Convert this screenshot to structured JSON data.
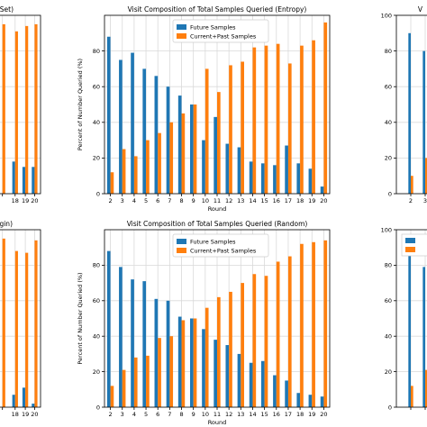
{
  "colors": {
    "future": "#1f77b4",
    "current": "#ff7f0e",
    "grid": "#d9d9d9",
    "frame": "#000000"
  },
  "chart_data": [
    {
      "id": "top-left",
      "type": "bar",
      "title": "eSet)",
      "xlabel": "",
      "ylabel": "",
      "categories": [
        "",
        "18",
        "19",
        "20"
      ],
      "ylim": [
        0,
        100
      ],
      "grid": true,
      "series": [
        {
          "name": "",
          "values": [
            null,
            18,
            15,
            15
          ]
        },
        {
          "name": "",
          "values": [
            95,
            91,
            94,
            95
          ]
        }
      ]
    },
    {
      "id": "top-middle",
      "type": "bar",
      "title": "Visit Composition of Total Samples Queried (Entropy)",
      "xlabel": "Round",
      "ylabel": "Percent of Number Queried (%)",
      "categories": [
        "2",
        "3",
        "4",
        "5",
        "6",
        "7",
        "8",
        "9",
        "10",
        "11",
        "12",
        "13",
        "14",
        "15",
        "16",
        "17",
        "18",
        "19",
        "20"
      ],
      "yticks": [
        "0",
        "20",
        "40",
        "60",
        "80"
      ],
      "ylim": [
        0,
        100
      ],
      "grid": true,
      "legend": "upper-center",
      "series": [
        {
          "name": "Future Samples",
          "values": [
            88,
            75,
            79,
            70,
            66,
            60,
            55,
            50,
            30,
            43,
            28,
            26,
            18,
            17,
            16,
            27,
            17,
            14,
            4
          ]
        },
        {
          "name": "Current+Past Samples",
          "values": [
            12,
            25,
            21,
            30,
            34,
            40,
            45,
            50,
            70,
            57,
            72,
            74,
            82,
            83,
            84,
            73,
            83,
            86,
            96
          ]
        }
      ]
    },
    {
      "id": "top-right",
      "type": "bar",
      "title": "V",
      "xlabel": "",
      "ylabel": "",
      "categories": [
        "2",
        "3"
      ],
      "yticks": [
        "0",
        "20",
        "40",
        "60",
        "80",
        "100"
      ],
      "ylim": [
        0,
        100
      ],
      "grid": true,
      "series": [
        {
          "name": "",
          "values": [
            90,
            80
          ]
        },
        {
          "name": "",
          "values": [
            10,
            20
          ]
        }
      ]
    },
    {
      "id": "bottom-left",
      "type": "bar",
      "title": "rgin)",
      "xlabel": "",
      "ylabel": "",
      "categories": [
        "",
        "18",
        "19",
        "20"
      ],
      "ylim": [
        0,
        100
      ],
      "grid": true,
      "series": [
        {
          "name": "",
          "values": [
            null,
            7,
            11,
            2
          ]
        },
        {
          "name": "",
          "values": [
            95,
            88,
            87,
            94
          ]
        }
      ]
    },
    {
      "id": "bottom-middle",
      "type": "bar",
      "title": "Visit Composition of Total Samples Queried (Random)",
      "xlabel": "Round",
      "ylabel": "Percent of Number Queried (%)",
      "categories": [
        "2",
        "3",
        "4",
        "5",
        "6",
        "7",
        "8",
        "9",
        "10",
        "11",
        "12",
        "13",
        "14",
        "15",
        "16",
        "17",
        "18",
        "19",
        "20"
      ],
      "yticks": [
        "0",
        "20",
        "40",
        "60",
        "80"
      ],
      "ylim": [
        0,
        100
      ],
      "grid": true,
      "legend": "upper-center",
      "series": [
        {
          "name": "Future Samples",
          "values": [
            88,
            79,
            72,
            71,
            61,
            60,
            51,
            50,
            44,
            38,
            35,
            30,
            25,
            26,
            18,
            15,
            8,
            7,
            6
          ]
        },
        {
          "name": "Current+Past Samples",
          "values": [
            12,
            21,
            28,
            29,
            39,
            40,
            49,
            50,
            56,
            62,
            65,
            70,
            75,
            74,
            82,
            85,
            92,
            93,
            94
          ]
        }
      ]
    },
    {
      "id": "bottom-right",
      "type": "bar",
      "title": "",
      "xlabel": "",
      "ylabel": "",
      "categories": [
        "",
        ""
      ],
      "yticks": [
        "0",
        "20",
        "40",
        "60",
        "80",
        "100"
      ],
      "ylim": [
        0,
        100
      ],
      "grid": true,
      "series": [
        {
          "name": "",
          "values": [
            88,
            79
          ]
        },
        {
          "name": "",
          "values": [
            12,
            21
          ]
        }
      ]
    }
  ]
}
